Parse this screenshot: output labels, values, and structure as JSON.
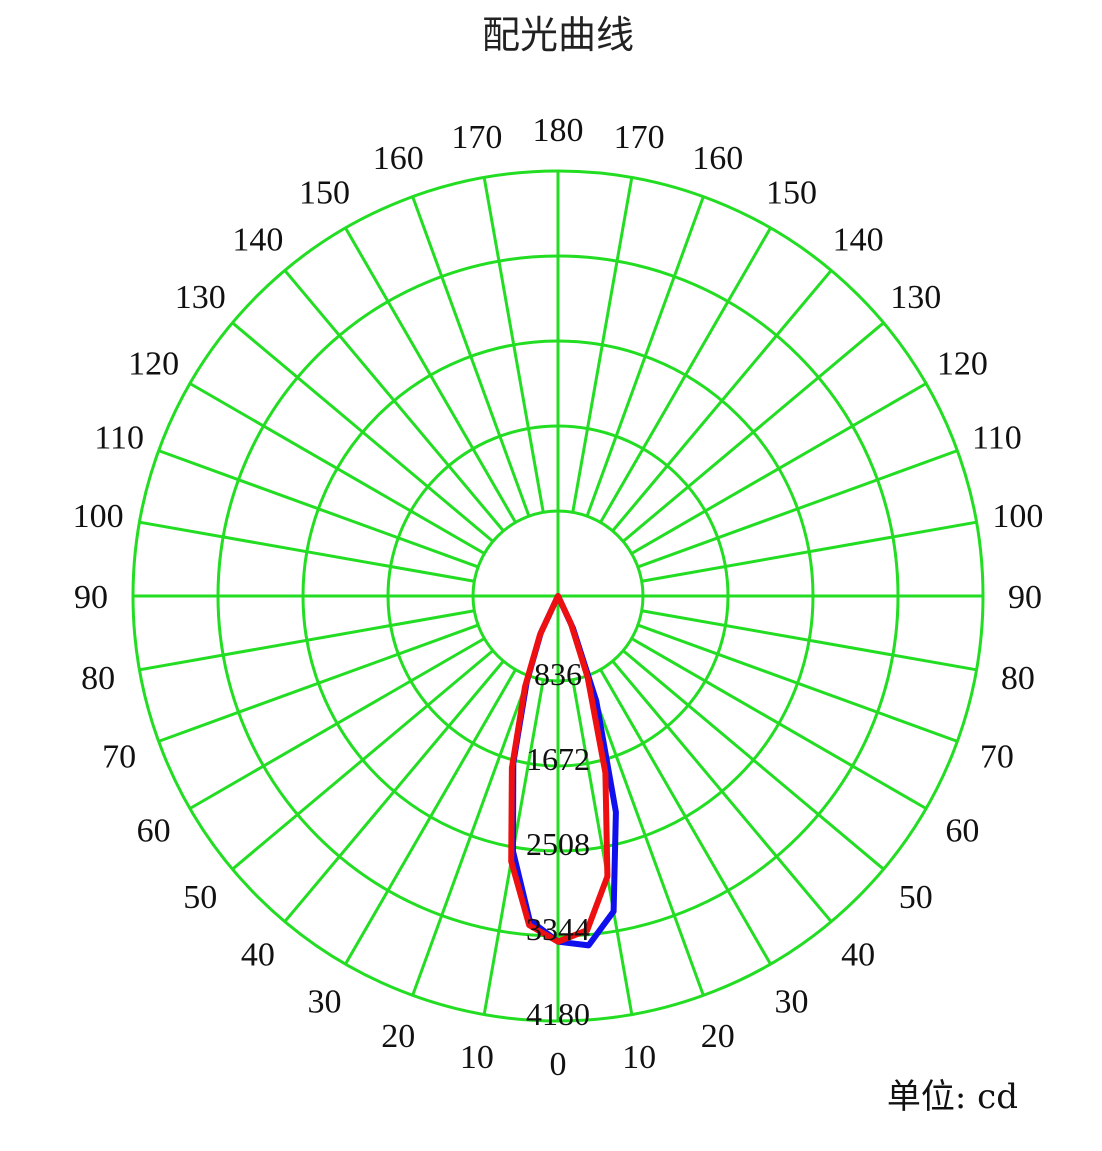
{
  "chart_data": {
    "type": "polar",
    "title": "配光曲线",
    "unit_label": "单位: cd",
    "angle_ticks": {
      "left": [
        "0",
        "10",
        "20",
        "30",
        "40",
        "50",
        "60",
        "70",
        "80",
        "90",
        "100",
        "110",
        "120",
        "130",
        "140",
        "150",
        "160",
        "170"
      ],
      "top": "180",
      "right": [
        "10",
        "20",
        "30",
        "40",
        "50",
        "60",
        "70",
        "80",
        "90",
        "100",
        "110",
        "120",
        "130",
        "140",
        "150",
        "160",
        "170"
      ]
    },
    "radial_ticks": [
      "836",
      "1672",
      "2508",
      "3344",
      "4180"
    ],
    "rmax": 4180,
    "grid": true,
    "series": [
      {
        "color": "#1010ee",
        "points": [
          {
            "angle": -25,
            "value": 400
          },
          {
            "angle": -20,
            "value": 900
          },
          {
            "angle": -15,
            "value": 1700
          },
          {
            "angle": -10,
            "value": 2550
          },
          {
            "angle": -5,
            "value": 3200
          },
          {
            "angle": 0,
            "value": 3400
          },
          {
            "angle": 5,
            "value": 3450
          },
          {
            "angle": 10,
            "value": 3150
          },
          {
            "angle": 15,
            "value": 2200
          },
          {
            "angle": 20,
            "value": 1100
          },
          {
            "angle": 25,
            "value": 350
          }
        ]
      },
      {
        "color": "#ee1010",
        "points": [
          {
            "angle": -25,
            "value": 420
          },
          {
            "angle": -20,
            "value": 950
          },
          {
            "angle": -15,
            "value": 1750
          },
          {
            "angle": -10,
            "value": 2650
          },
          {
            "angle": -5,
            "value": 3250
          },
          {
            "angle": 0,
            "value": 3400
          },
          {
            "angle": 5,
            "value": 3300
          },
          {
            "angle": 10,
            "value": 2800
          },
          {
            "angle": 15,
            "value": 1800
          },
          {
            "angle": 20,
            "value": 850
          },
          {
            "angle": 25,
            "value": 300
          }
        ]
      }
    ]
  }
}
